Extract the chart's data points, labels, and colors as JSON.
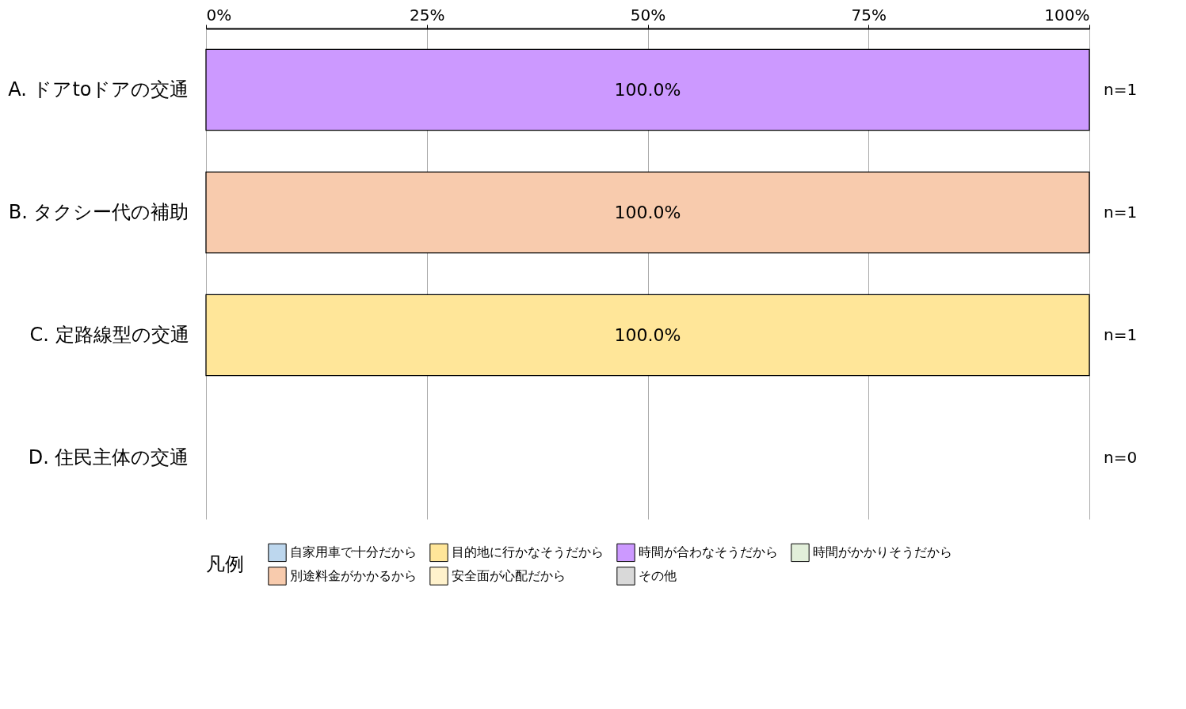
{
  "chart_data": {
    "type": "bar",
    "orientation": "horizontal",
    "stacked": true,
    "categories": [
      "A. ドアtoドアの交通",
      "B. タクシー代の補助",
      "C. 定路線型の交通",
      "D. 住民主体の交通"
    ],
    "series": [
      {
        "name": "自家用車で十分だから",
        "color": "#bdd7ee",
        "values": [
          null,
          null,
          null,
          null
        ]
      },
      {
        "name": "目的地に行かなそうだから",
        "color": "#ffe699",
        "values": [
          null,
          null,
          100,
          null
        ],
        "value_labels": [
          null,
          null,
          "100.0%",
          null
        ]
      },
      {
        "name": "時間が合わなそうだから",
        "color": "#cc99ff",
        "values": [
          100,
          null,
          null,
          null
        ],
        "value_labels": [
          "100.0%",
          null,
          null,
          null
        ]
      },
      {
        "name": "時間がかかりそうだから",
        "color": "#e2efda",
        "values": [
          null,
          null,
          null,
          null
        ]
      },
      {
        "name": "別途料金がかかるから",
        "color": "#f8cbad",
        "values": [
          null,
          100,
          null,
          null
        ],
        "value_labels": [
          null,
          "100.0%",
          null,
          null
        ]
      },
      {
        "name": "安全面が心配だから",
        "color": "#fff2cc",
        "values": [
          null,
          null,
          null,
          null
        ]
      },
      {
        "name": "その他",
        "color": "#d9d9d9",
        "values": [
          null,
          null,
          null,
          null
        ]
      }
    ],
    "xlim": [
      0,
      100
    ],
    "xticks": [
      {
        "value": 0,
        "label": "0%"
      },
      {
        "value": 25,
        "label": "25%"
      },
      {
        "value": 50,
        "label": "50%"
      },
      {
        "value": 75,
        "label": "75%"
      },
      {
        "value": 100,
        "label": "100%"
      }
    ],
    "grid": "x",
    "legend": "bottom",
    "legend_title": "凡例",
    "annotations": [
      "n=1",
      "n=1",
      "n=1",
      "n=0"
    ]
  }
}
